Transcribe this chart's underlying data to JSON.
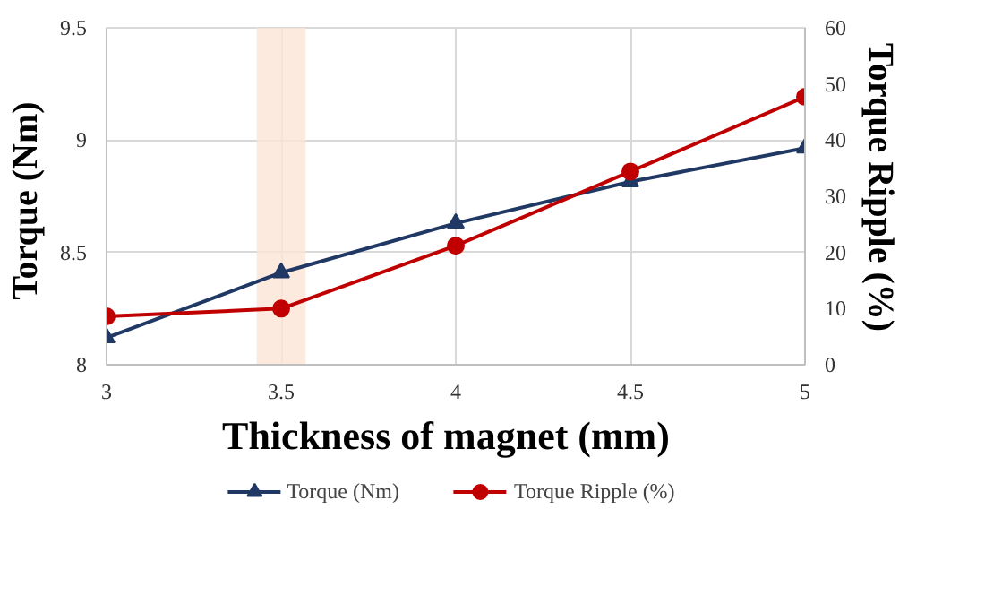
{
  "chart_data": {
    "type": "line",
    "xlabel": "Thickness  of magnet  (mm)",
    "ylabel": "Torque  (Nm)",
    "y2label": "Torque  Ripple  (%)",
    "x": [
      3,
      3.5,
      4,
      4.5,
      5
    ],
    "series": [
      {
        "name": "Torque (Nm)",
        "color": "#203864",
        "values": [
          8.12,
          8.41,
          8.63,
          8.815,
          8.965
        ],
        "marker": "triangle"
      },
      {
        "name": "Torque Ripple (%)",
        "color": "#c00000",
        "values": [
          8.6,
          10,
          21.2,
          34.4,
          47.7
        ],
        "marker": "circle",
        "axis": "y2"
      }
    ],
    "xlim": [
      3,
      5
    ],
    "xticks": [
      3,
      3.5,
      4,
      4.5,
      5
    ],
    "ylim": [
      8,
      9.5
    ],
    "yticks": [
      8,
      8.5,
      9,
      9.5
    ],
    "y2lim": [
      0,
      60
    ],
    "y2ticks": [
      0,
      10,
      20,
      30,
      40,
      50,
      60
    ],
    "bands": [
      {
        "axis": "x",
        "from": 3.43,
        "to": 3.57,
        "color": "#fbe5d6"
      }
    ],
    "grid": true,
    "legend": "bottom"
  }
}
